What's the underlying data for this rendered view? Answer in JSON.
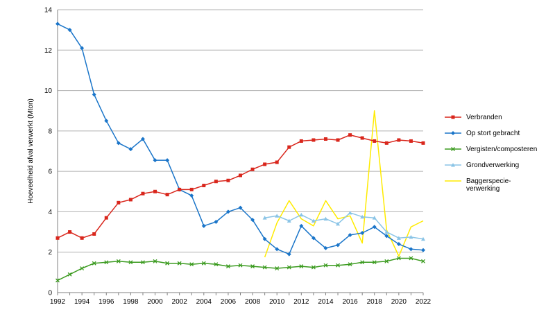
{
  "chart_data": {
    "type": "line",
    "title": "",
    "xlabel": "",
    "ylabel": "Hoeveelheid afval verwerkt (Mton)",
    "xlim": [
      1992,
      2022
    ],
    "ylim": [
      0,
      14
    ],
    "x_ticks": [
      "1992",
      "1994",
      "1996",
      "1998",
      "2000",
      "2002",
      "2004",
      "2006",
      "2008",
      "2010",
      "2012",
      "2014",
      "2016",
      "2018",
      "2020",
      "2022"
    ],
    "y_ticks": [
      "0",
      "2",
      "4",
      "6",
      "8",
      "10",
      "12",
      "14"
    ],
    "grid": "horizontal",
    "legend_position": "right",
    "series": [
      {
        "name": "Verbranden",
        "color": "#d9261c",
        "marker": "square",
        "x": [
          1992,
          1993,
          1994,
          1995,
          1996,
          1997,
          1998,
          1999,
          2000,
          2001,
          2002,
          2003,
          2004,
          2005,
          2006,
          2007,
          2008,
          2009,
          2010,
          2011,
          2012,
          2013,
          2014,
          2015,
          2016,
          2017,
          2018,
          2019,
          2020,
          2021,
          2022
        ],
        "values": [
          2.7,
          3.0,
          2.7,
          2.9,
          3.7,
          4.45,
          4.6,
          4.9,
          5.0,
          4.85,
          5.1,
          5.1,
          5.3,
          5.5,
          5.55,
          5.8,
          6.1,
          6.35,
          6.45,
          7.2,
          7.5,
          7.55,
          7.6,
          7.55,
          7.8,
          7.65,
          7.5,
          7.4,
          7.55,
          7.5,
          7.4
        ]
      },
      {
        "name": "Op stort gebracht",
        "color": "#1a75c9",
        "marker": "diamond",
        "x": [
          1992,
          1993,
          1994,
          1995,
          1996,
          1997,
          1998,
          1999,
          2000,
          2001,
          2002,
          2003,
          2004,
          2005,
          2006,
          2007,
          2008,
          2009,
          2010,
          2011,
          2012,
          2013,
          2014,
          2015,
          2016,
          2017,
          2018,
          2019,
          2020,
          2021,
          2022
        ],
        "values": [
          13.3,
          13.0,
          12.1,
          9.8,
          8.5,
          7.4,
          7.1,
          7.6,
          6.55,
          6.55,
          5.1,
          4.8,
          3.3,
          3.5,
          4.0,
          4.2,
          3.6,
          2.65,
          2.15,
          1.9,
          3.3,
          2.7,
          2.2,
          2.35,
          2.85,
          2.95,
          3.25,
          2.8,
          2.4,
          2.15,
          2.1
        ]
      },
      {
        "name": "Vergisten/composteren",
        "color": "#3a9a1e",
        "marker": "x",
        "x": [
          1992,
          1993,
          1994,
          1995,
          1996,
          1997,
          1998,
          1999,
          2000,
          2001,
          2002,
          2003,
          2004,
          2005,
          2006,
          2007,
          2008,
          2009,
          2010,
          2011,
          2012,
          2013,
          2014,
          2015,
          2016,
          2017,
          2018,
          2019,
          2020,
          2021,
          2022
        ],
        "values": [
          0.6,
          0.9,
          1.2,
          1.45,
          1.5,
          1.55,
          1.5,
          1.5,
          1.55,
          1.45,
          1.45,
          1.4,
          1.45,
          1.4,
          1.3,
          1.35,
          1.3,
          1.25,
          1.2,
          1.25,
          1.3,
          1.25,
          1.35,
          1.35,
          1.4,
          1.5,
          1.5,
          1.55,
          1.7,
          1.7,
          1.55
        ]
      },
      {
        "name": "Grondverwerking",
        "color": "#8ac4e6",
        "marker": "triangle",
        "x": [
          2009,
          2010,
          2011,
          2012,
          2013,
          2014,
          2015,
          2016,
          2017,
          2018,
          2019,
          2020,
          2021,
          2022
        ],
        "values": [
          3.7,
          3.8,
          3.55,
          3.85,
          3.55,
          3.65,
          3.4,
          3.95,
          3.75,
          3.7,
          3.0,
          2.7,
          2.75,
          2.65
        ]
      },
      {
        "name": "Baggerspecie-verwerking",
        "label_lines": [
          "Baggerspecie-",
          "verwerking"
        ],
        "color": "#ffeb00",
        "marker": "none",
        "x": [
          2009,
          2010,
          2011,
          2012,
          2013,
          2014,
          2015,
          2016,
          2017,
          2018,
          2019,
          2020,
          2021,
          2022
        ],
        "values": [
          1.75,
          3.45,
          4.55,
          3.65,
          3.3,
          4.55,
          3.65,
          3.8,
          2.45,
          9.0,
          3.1,
          1.8,
          3.25,
          3.55
        ]
      }
    ]
  }
}
